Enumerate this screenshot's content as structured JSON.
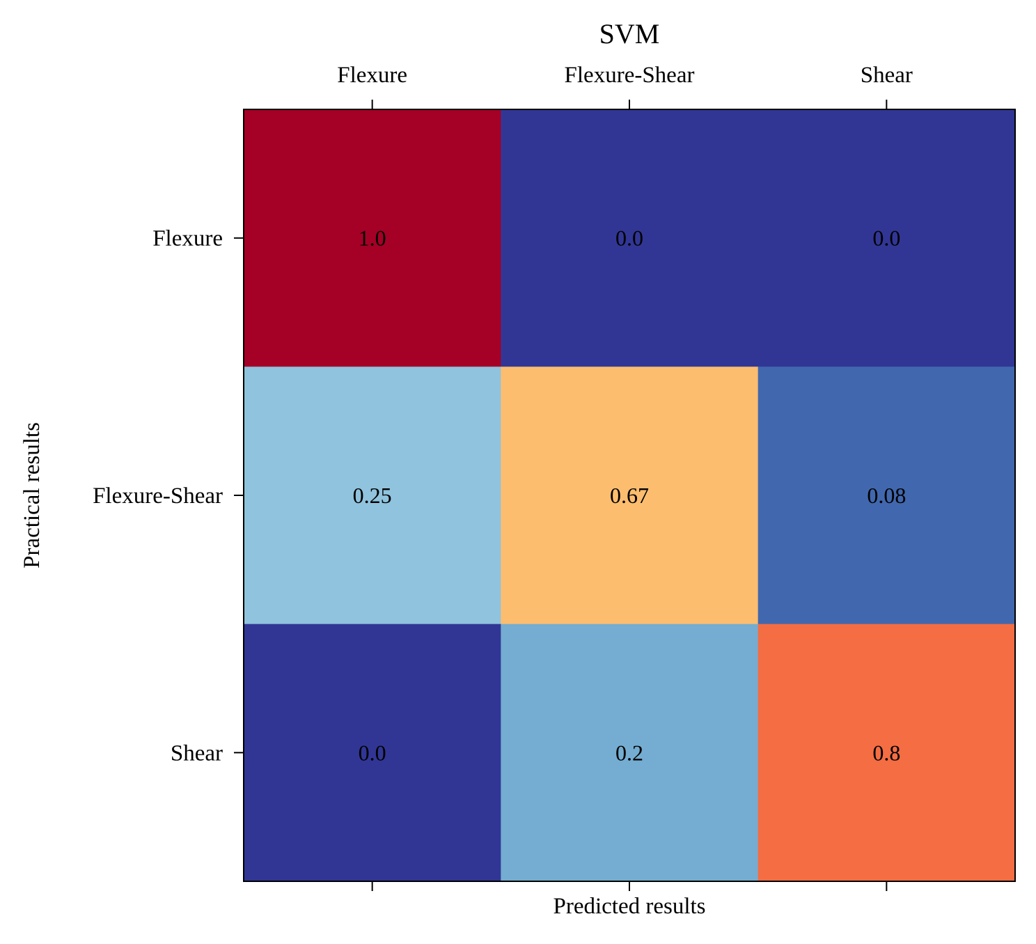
{
  "chart_data": {
    "type": "heatmap",
    "title": "SVM",
    "xlabel": "Predicted results",
    "ylabel": "Practical results",
    "x_categories": [
      "Flexure",
      "Flexure-Shear",
      "Shear"
    ],
    "y_categories": [
      "Flexure",
      "Flexure-Shear",
      "Shear"
    ],
    "values": [
      [
        1.0,
        0.0,
        0.0
      ],
      [
        0.25,
        0.67,
        0.08
      ],
      [
        0.0,
        0.2,
        0.8
      ]
    ],
    "cell_labels": [
      [
        "1.0",
        "0.0",
        "0.0"
      ],
      [
        "0.25",
        "0.67",
        "0.08"
      ],
      [
        "0.0",
        "0.2",
        "0.8"
      ]
    ],
    "x_tick_position": "top",
    "colormap": "RdYlBu_r",
    "value_range": [
      0,
      1
    ],
    "grid": false,
    "legend": "none"
  }
}
